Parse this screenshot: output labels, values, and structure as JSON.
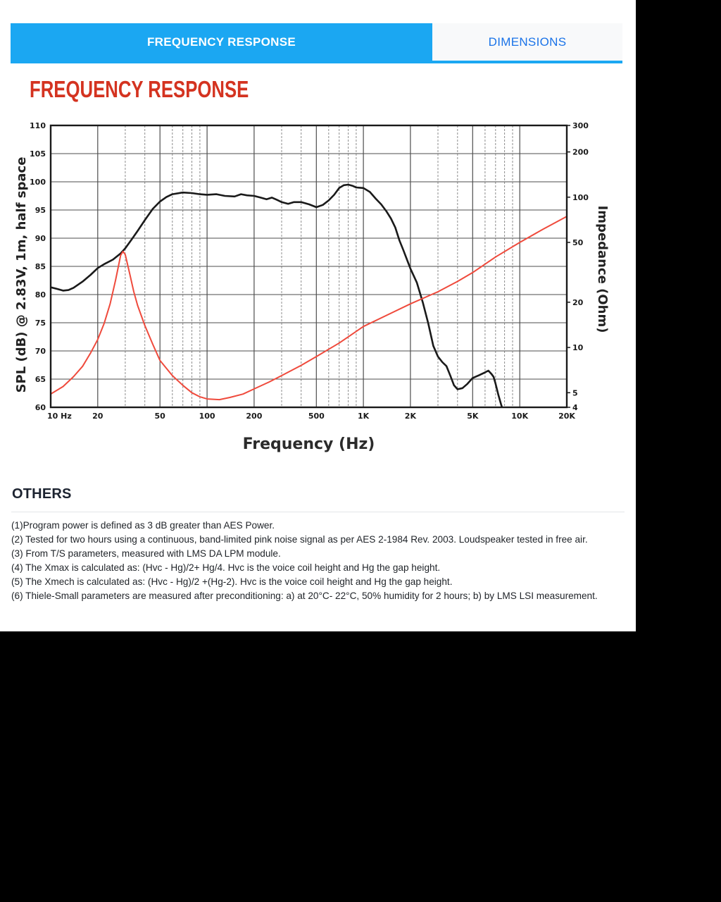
{
  "tabs": [
    {
      "label": "FREQUENCY RESPONSE",
      "active": true
    },
    {
      "label": "DIMENSIONS",
      "active": false
    }
  ],
  "section": {
    "title": "FREQUENCY RESPONSE"
  },
  "others": {
    "title": "OTHERS",
    "notes": [
      "(1)Program power is defined as 3 dB greater than AES Power.",
      "(2) Tested for two hours using a continuous, band-limited pink noise signal as per AES 2-1984 Rev. 2003. Loudspeaker tested in free air.",
      "(3) From T/S parameters, measured with LMS DA LPM module.",
      "(4) The Xmax is calculated as: (Hvc - Hg)/2+ Hg/4. Hvc is the voice coil height and Hg the gap height.",
      "(5) The Xmech is calculated as: (Hvc - Hg)/2 +(Hg-2). Hvc is the voice coil height and Hg the gap height.",
      "(6) Thiele-Small parameters are measured after preconditioning: a) at 20°C- 22°C, 50% humidity for 2 hours; b) by LMS LSI measurement."
    ]
  },
  "colors": {
    "tab_active_bg": "#1ba7f2",
    "tab_inactive_bg": "#f8f9fa",
    "tab_inactive_text": "#1a73e8",
    "heading_red": "#d43320",
    "spl_curve": "#1a1a1a",
    "impedance_curve": "#ef4a3c",
    "grid_major": "#4d4d4d",
    "grid_minor": "#8d8d8d",
    "page_outside": "#000000"
  },
  "chart_data": {
    "type": "line",
    "title": "",
    "xlabel": "Frequency (Hz)",
    "ylabel_left": "SPL (dB) @ 2.83V, 1m, half space",
    "ylabel_right": "Impedance (Ohm)",
    "x_scale": "log",
    "xlim": [
      10,
      20000
    ],
    "ylim_left": [
      60,
      110
    ],
    "ylim_right": [
      4,
      300
    ],
    "y_right_scale": "log",
    "grid": true,
    "x_ticks": [
      "10 Hz",
      "20",
      "50",
      "100",
      "200",
      "500",
      "1K",
      "2K",
      "5K",
      "10K",
      "20K"
    ],
    "x_tick_values": [
      10,
      20,
      50,
      100,
      200,
      500,
      1000,
      2000,
      5000,
      10000,
      20000
    ],
    "x_minor": [
      30,
      40,
      60,
      70,
      80,
      90,
      300,
      400,
      600,
      700,
      800,
      900,
      3000,
      4000,
      6000,
      7000,
      8000,
      9000
    ],
    "y_ticks_left": [
      110,
      105,
      100,
      95,
      90,
      85,
      80,
      75,
      70,
      65,
      60
    ],
    "y_ticks_right": [
      300,
      200,
      100,
      50,
      20,
      10,
      5,
      4
    ],
    "series": [
      {
        "name": "SPL",
        "axis": "left",
        "color": "#1a1a1a",
        "width": 2.6,
        "points": [
          [
            10,
            81.3
          ],
          [
            11,
            81.0
          ],
          [
            12,
            80.7
          ],
          [
            13,
            80.8
          ],
          [
            14,
            81.2
          ],
          [
            16,
            82.3
          ],
          [
            18,
            83.5
          ],
          [
            20,
            84.7
          ],
          [
            22,
            85.4
          ],
          [
            25,
            86.2
          ],
          [
            28,
            87.3
          ],
          [
            30,
            88.2
          ],
          [
            33,
            89.8
          ],
          [
            36,
            91.3
          ],
          [
            40,
            93.2
          ],
          [
            45,
            95.2
          ],
          [
            50,
            96.5
          ],
          [
            55,
            97.3
          ],
          [
            60,
            97.8
          ],
          [
            70,
            98.1
          ],
          [
            80,
            98.0
          ],
          [
            90,
            97.8
          ],
          [
            100,
            97.7
          ],
          [
            115,
            97.8
          ],
          [
            130,
            97.5
          ],
          [
            150,
            97.4
          ],
          [
            165,
            97.8
          ],
          [
            180,
            97.6
          ],
          [
            200,
            97.5
          ],
          [
            220,
            97.2
          ],
          [
            240,
            96.9
          ],
          [
            260,
            97.2
          ],
          [
            280,
            96.8
          ],
          [
            300,
            96.4
          ],
          [
            330,
            96.1
          ],
          [
            360,
            96.4
          ],
          [
            400,
            96.4
          ],
          [
            450,
            96.0
          ],
          [
            500,
            95.5
          ],
          [
            550,
            95.9
          ],
          [
            600,
            96.7
          ],
          [
            650,
            97.7
          ],
          [
            700,
            98.9
          ],
          [
            750,
            99.4
          ],
          [
            800,
            99.5
          ],
          [
            850,
            99.3
          ],
          [
            900,
            99.0
          ],
          [
            1000,
            98.9
          ],
          [
            1100,
            98.2
          ],
          [
            1200,
            97.0
          ],
          [
            1300,
            96.0
          ],
          [
            1400,
            94.8
          ],
          [
            1500,
            93.5
          ],
          [
            1600,
            91.9
          ],
          [
            1700,
            89.6
          ],
          [
            1800,
            87.9
          ],
          [
            1900,
            86.2
          ],
          [
            2000,
            84.6
          ],
          [
            2200,
            82.1
          ],
          [
            2400,
            78.6
          ],
          [
            2600,
            74.9
          ],
          [
            2800,
            70.9
          ],
          [
            3000,
            69.0
          ],
          [
            3200,
            68.0
          ],
          [
            3400,
            67.3
          ],
          [
            3600,
            65.6
          ],
          [
            3800,
            63.9
          ],
          [
            4000,
            63.2
          ],
          [
            4300,
            63.4
          ],
          [
            4600,
            64.1
          ],
          [
            5000,
            65.2
          ],
          [
            5500,
            65.7
          ],
          [
            6000,
            66.2
          ],
          [
            6300,
            66.5
          ],
          [
            6600,
            65.9
          ],
          [
            6800,
            65.4
          ],
          [
            7000,
            64.2
          ],
          [
            7300,
            62.2
          ],
          [
            7600,
            60.5
          ],
          [
            7800,
            59.5
          ]
        ]
      },
      {
        "name": "Impedance",
        "axis": "right",
        "color": "#ef4a3c",
        "width": 2,
        "points": [
          [
            10,
            4.9
          ],
          [
            12,
            5.5
          ],
          [
            14,
            6.4
          ],
          [
            16,
            7.5
          ],
          [
            18,
            9.2
          ],
          [
            20,
            11.3
          ],
          [
            22,
            14.5
          ],
          [
            24,
            19.5
          ],
          [
            26,
            28
          ],
          [
            27,
            34
          ],
          [
            28,
            41
          ],
          [
            29,
            43.5
          ],
          [
            30,
            41.5
          ],
          [
            32,
            31
          ],
          [
            34,
            23.5
          ],
          [
            36,
            19
          ],
          [
            40,
            14
          ],
          [
            45,
            10.5
          ],
          [
            50,
            8.2
          ],
          [
            60,
            6.5
          ],
          [
            70,
            5.6
          ],
          [
            80,
            5.0
          ],
          [
            90,
            4.7
          ],
          [
            100,
            4.55
          ],
          [
            120,
            4.5
          ],
          [
            140,
            4.65
          ],
          [
            170,
            4.9
          ],
          [
            200,
            5.3
          ],
          [
            250,
            5.9
          ],
          [
            300,
            6.5
          ],
          [
            400,
            7.6
          ],
          [
            500,
            8.7
          ],
          [
            700,
            10.7
          ],
          [
            1000,
            13.8
          ],
          [
            1500,
            16.9
          ],
          [
            2000,
            19.5
          ],
          [
            3000,
            23.5
          ],
          [
            4000,
            27.5
          ],
          [
            5000,
            31.5
          ],
          [
            7000,
            40
          ],
          [
            10000,
            50
          ],
          [
            14000,
            61
          ],
          [
            20000,
            74.5
          ]
        ]
      }
    ],
    "legend": "none"
  }
}
